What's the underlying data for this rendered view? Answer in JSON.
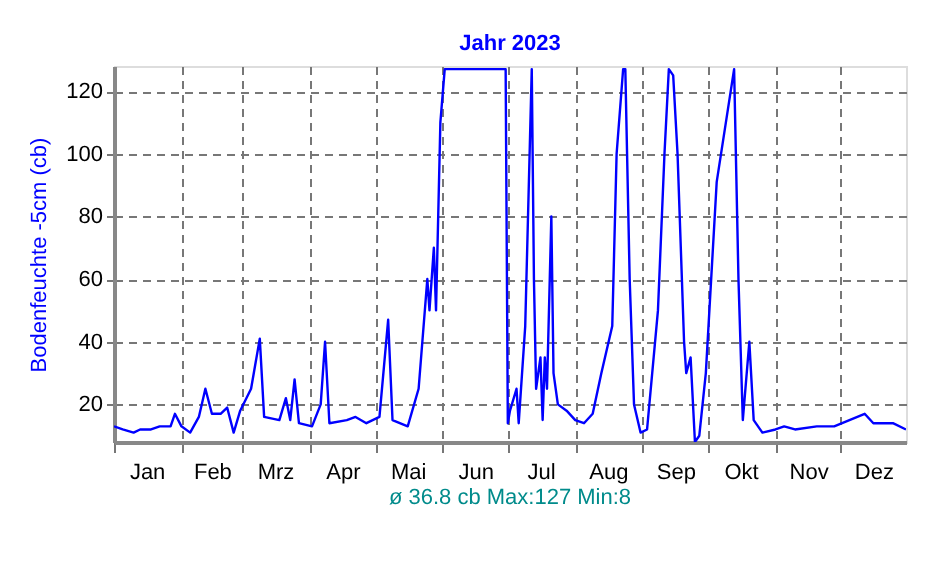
{
  "chart_data": {
    "type": "line",
    "title": "Jahr 2023",
    "ylabel": "Bodenfeuchte -5cm (cb)",
    "annotations": [
      "ø 36.8 cb Max:127 Min:8"
    ],
    "x": [
      "2023-01-01",
      "2023-01-05",
      "2023-01-10",
      "2023-01-13",
      "2023-01-18",
      "2023-01-22",
      "2023-01-27",
      "2023-01-29",
      "2023-02-01",
      "2023-02-05",
      "2023-02-09",
      "2023-02-12",
      "2023-02-15",
      "2023-02-19",
      "2023-02-22",
      "2023-02-25",
      "2023-02-28",
      "2023-03-05",
      "2023-03-09",
      "2023-03-11",
      "2023-03-18",
      "2023-03-21",
      "2023-03-23",
      "2023-03-25",
      "2023-03-27",
      "2023-04-02",
      "2023-04-06",
      "2023-04-08",
      "2023-04-10",
      "2023-04-18",
      "2023-04-22",
      "2023-04-27",
      "2023-05-03",
      "2023-05-07",
      "2023-05-09",
      "2023-05-16",
      "2023-05-21",
      "2023-05-25",
      "2023-05-26",
      "2023-05-28",
      "2023-05-29",
      "2023-05-31",
      "2023-06-02",
      "2023-06-30",
      "2023-07-01",
      "2023-07-02",
      "2023-07-05",
      "2023-07-06",
      "2023-07-09",
      "2023-07-12",
      "2023-07-13",
      "2023-07-14",
      "2023-07-16",
      "2023-07-17",
      "2023-07-18",
      "2023-07-19",
      "2023-07-21",
      "2023-07-22",
      "2023-07-24",
      "2023-07-28",
      "2023-08-01",
      "2023-08-05",
      "2023-08-09",
      "2023-08-13",
      "2023-08-18",
      "2023-08-20",
      "2023-08-23",
      "2023-08-24",
      "2023-08-26",
      "2023-08-28",
      "2023-08-31",
      "2023-09-03",
      "2023-09-08",
      "2023-09-11",
      "2023-09-13",
      "2023-09-15",
      "2023-09-17",
      "2023-09-18",
      "2023-09-20",
      "2023-09-21",
      "2023-09-23",
      "2023-09-25",
      "2023-09-27",
      "2023-09-30",
      "2023-10-05",
      "2023-10-13",
      "2023-10-15",
      "2023-10-17",
      "2023-10-20",
      "2023-10-22",
      "2023-10-26",
      "2023-11-01",
      "2023-11-05",
      "2023-11-10",
      "2023-11-20",
      "2023-11-28",
      "2023-12-05",
      "2023-12-12",
      "2023-12-16",
      "2023-12-25",
      "2023-12-31"
    ],
    "series": [
      {
        "color": "#0000ff",
        "values": [
          13,
          12,
          11,
          12,
          12,
          13,
          13,
          17,
          13,
          11,
          16,
          25,
          17,
          17,
          19,
          11,
          18,
          25,
          41,
          16,
          15,
          22,
          15,
          28,
          14,
          13,
          20,
          40,
          14,
          15,
          16,
          14,
          16,
          47,
          15,
          13,
          25,
          60,
          50,
          70,
          50,
          110,
          127,
          127,
          14,
          18,
          25,
          14,
          45,
          127,
          60,
          25,
          35,
          15,
          35,
          25,
          80,
          30,
          20,
          18,
          15,
          14,
          17,
          30,
          45,
          100,
          127,
          127,
          60,
          20,
          11,
          12,
          50,
          100,
          127,
          125,
          100,
          80,
          40,
          30,
          35,
          8,
          10,
          30,
          91,
          127,
          60,
          15,
          40,
          15,
          11,
          12,
          13,
          12,
          13,
          13,
          15,
          17,
          14,
          14,
          12
        ]
      }
    ],
    "xlim": [
      "2023-01-01",
      "2023-12-31"
    ],
    "ylim": [
      8,
      128
    ],
    "xticks": [
      {
        "value": "2023-01-01",
        "label": null
      },
      {
        "value": "2023-01-16",
        "label": "Jan"
      },
      {
        "value": "2023-02-01",
        "label": null
      },
      {
        "value": "2023-02-15",
        "label": "Feb"
      },
      {
        "value": "2023-03-01",
        "label": null
      },
      {
        "value": "2023-03-16",
        "label": "Mrz"
      },
      {
        "value": "2023-04-01",
        "label": null
      },
      {
        "value": "2023-04-16",
        "label": "Apr"
      },
      {
        "value": "2023-05-01",
        "label": null
      },
      {
        "value": "2023-05-16",
        "label": "Mai"
      },
      {
        "value": "2023-06-01",
        "label": null
      },
      {
        "value": "2023-06-16",
        "label": "Jun"
      },
      {
        "value": "2023-07-01",
        "label": null
      },
      {
        "value": "2023-07-16",
        "label": "Jul"
      },
      {
        "value": "2023-08-01",
        "label": null
      },
      {
        "value": "2023-08-16",
        "label": "Aug"
      },
      {
        "value": "2023-09-01",
        "label": null
      },
      {
        "value": "2023-09-16",
        "label": "Sep"
      },
      {
        "value": "2023-10-01",
        "label": null
      },
      {
        "value": "2023-10-16",
        "label": "Okt"
      },
      {
        "value": "2023-11-01",
        "label": null
      },
      {
        "value": "2023-11-16",
        "label": "Nov"
      },
      {
        "value": "2023-12-01",
        "label": null
      },
      {
        "value": "2023-12-16",
        "label": "Dez"
      }
    ],
    "yticks": [
      20,
      40,
      60,
      80,
      100,
      120
    ],
    "grid": true,
    "marker": "none",
    "line_style": "solid"
  }
}
